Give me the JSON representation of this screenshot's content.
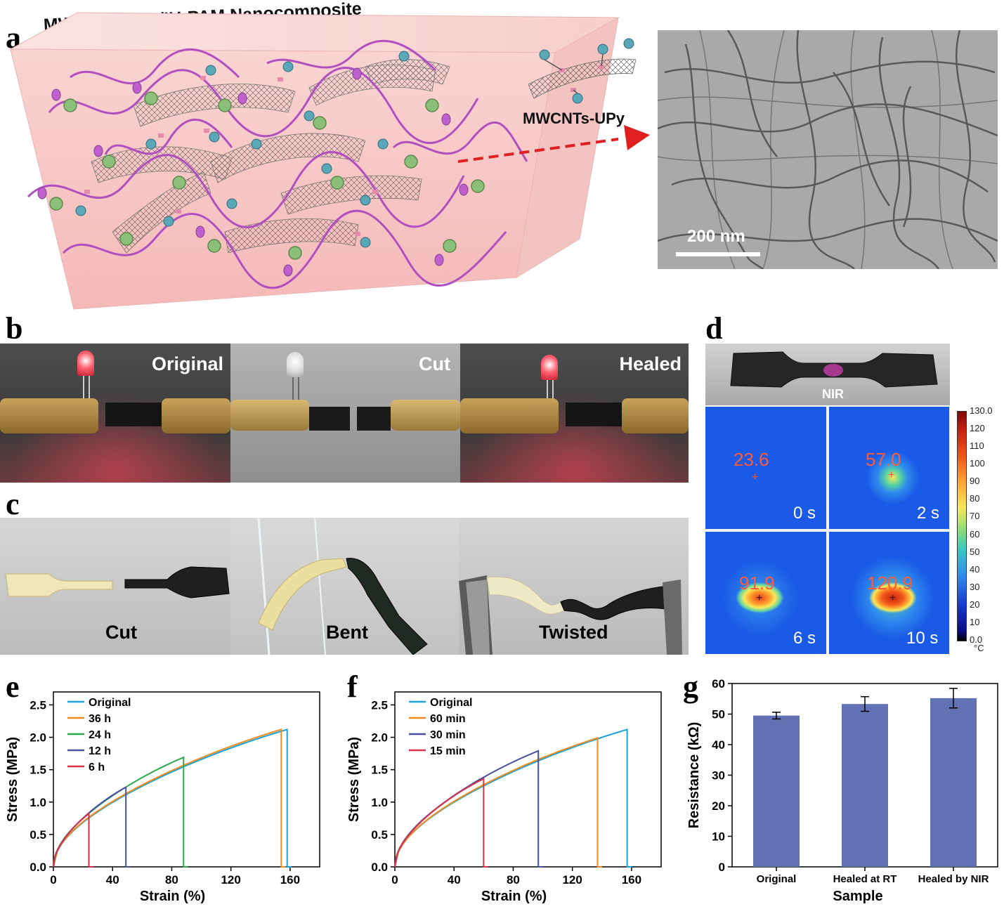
{
  "panel_labels": {
    "a": "a",
    "b": "b",
    "c": "c",
    "d": "d",
    "e": "e",
    "f": "f",
    "g": "g"
  },
  "panel_a": {
    "title": "MWCNTs-UPy/IU-PAM Nanocomposite",
    "inset_label": "MWCNTs-UPy",
    "scale_bar": "200 nm",
    "colors": {
      "block": "#f7c9c9",
      "polymer": "#b050c0",
      "crosslinker": "#8cbf7a",
      "upy": "#5aa7b8",
      "arrow": "#e02020"
    }
  },
  "panel_b": {
    "captions": [
      "Original",
      "Cut",
      "Healed"
    ]
  },
  "panel_c": {
    "captions": [
      "Cut",
      "Bent",
      "Twisted"
    ]
  },
  "panel_d": {
    "photo_label": "NIR",
    "thermal": [
      {
        "temp": "23.6",
        "time": "0 s"
      },
      {
        "temp": "57.0",
        "time": "2 s"
      },
      {
        "temp": "91.9",
        "time": "6 s"
      },
      {
        "temp": "120.9",
        "time": "10 s"
      }
    ],
    "colorbar_ticks": [
      "130.0",
      "120",
      "110",
      "100",
      "90",
      "80",
      "70",
      "60",
      "50",
      "40",
      "30",
      "20",
      "10",
      "0.0"
    ],
    "colorbar_unit": "°C"
  },
  "chart_data": [
    {
      "id": "e",
      "type": "line",
      "xlabel": "Strain (%)",
      "ylabel": "Stress (MPa)",
      "xlim": [
        0,
        180
      ],
      "ylim": [
        0,
        2.7
      ],
      "xticks": [
        "0",
        "40",
        "80",
        "120",
        "160"
      ],
      "yticks": [
        "0.0",
        "0.5",
        "1.0",
        "1.5",
        "2.0",
        "2.5"
      ],
      "legend_position": "top-left",
      "series": [
        {
          "name": "Original",
          "color": "#1aa3d9",
          "break_strain": 158,
          "max_stress": 2.12
        },
        {
          "name": "36 h",
          "color": "#f08c1e",
          "break_strain": 154,
          "max_stress": 2.12
        },
        {
          "name": "24 h",
          "color": "#2ea84a",
          "break_strain": 88,
          "max_stress": 1.69
        },
        {
          "name": "12 h",
          "color": "#4a4fa0",
          "break_strain": 49,
          "max_stress": 1.23
        },
        {
          "name": "6 h",
          "color": "#d9324a",
          "break_strain": 24,
          "max_stress": 0.82
        }
      ]
    },
    {
      "id": "f",
      "type": "line",
      "xlabel": "Strain (%)",
      "ylabel": "Stress (MPa)",
      "xlim": [
        0,
        180
      ],
      "ylim": [
        0,
        2.7
      ],
      "xticks": [
        "0",
        "40",
        "80",
        "120",
        "160"
      ],
      "yticks": [
        "0.0",
        "0.5",
        "1.0",
        "1.5",
        "2.0",
        "2.5"
      ],
      "legend_position": "top-left",
      "series": [
        {
          "name": "Original",
          "color": "#1aa3d9",
          "break_strain": 157,
          "max_stress": 2.12
        },
        {
          "name": "60 min",
          "color": "#f08c1e",
          "break_strain": 137,
          "max_stress": 1.99
        },
        {
          "name": "30 min",
          "color": "#4a4fa0",
          "break_strain": 97,
          "max_stress": 1.79
        },
        {
          "name": "15 min",
          "color": "#d9324a",
          "break_strain": 60,
          "max_stress": 1.36
        }
      ]
    },
    {
      "id": "g",
      "type": "bar",
      "xlabel": "Sample",
      "ylabel": "Resistance (kΩ)",
      "ylim": [
        0,
        60
      ],
      "yticks": [
        "0",
        "10",
        "20",
        "30",
        "40",
        "50",
        "60"
      ],
      "categories": [
        "Original",
        "Healed at RT",
        "Healed by NIR"
      ],
      "values": [
        49.5,
        53.3,
        55.2
      ],
      "errors": [
        1.1,
        2.4,
        3.2
      ],
      "bar_color": "#6270b4"
    }
  ]
}
